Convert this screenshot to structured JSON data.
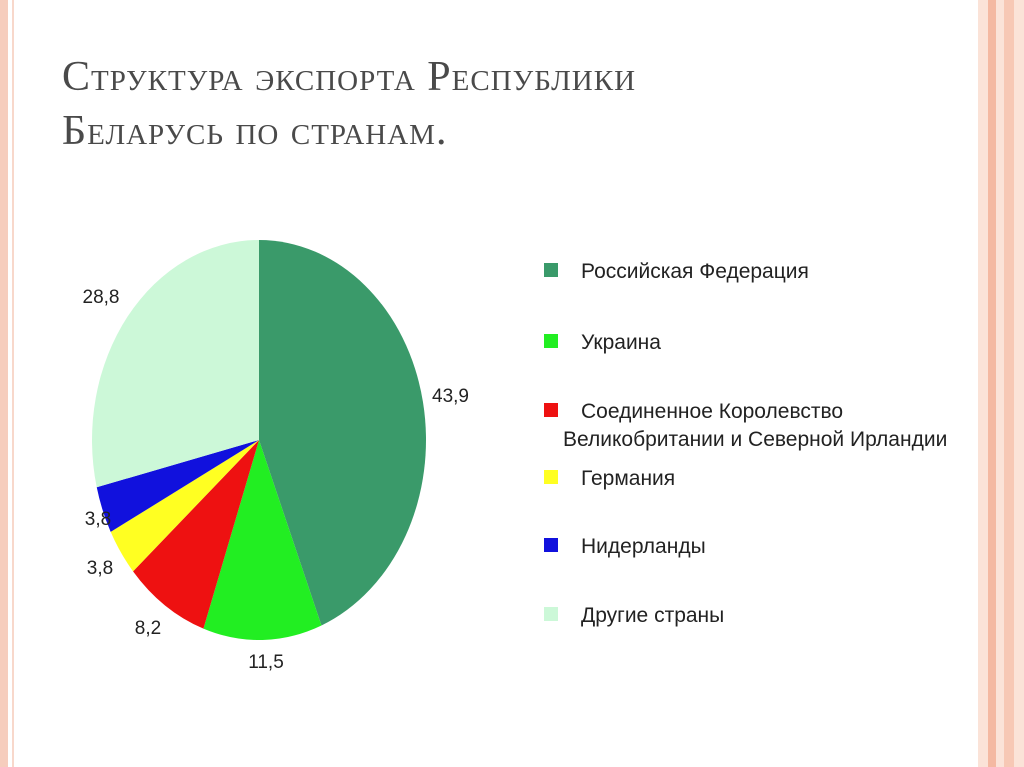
{
  "slide": {
    "title_lines": [
      "Структура экспорта Республики",
      "Беларусь по странам."
    ]
  },
  "chart_data": {
    "type": "pie",
    "title": "Структура экспорта Республики Беларусь по странам.",
    "legend_position": "right",
    "categories": [
      "Российская Федерация",
      "Украина",
      "Соединенное Королевство Великобритании и Северной Ирландии",
      "Германия",
      "Нидерланды",
      "Другие страны"
    ],
    "values": [
      43.9,
      11.5,
      8.2,
      3.8,
      3.8,
      28.8
    ],
    "value_labels": [
      "43,9",
      "11,5",
      "8,2",
      "3,8",
      "3,8",
      "28,8"
    ],
    "colors": [
      "#3a9a6a",
      "#22ee22",
      "#ee1111",
      "#ffff22",
      "#1111dd",
      "#ccf8d8"
    ],
    "legend": [
      {
        "lines": [
          "Российская Федерация"
        ]
      },
      {
        "lines": [
          "Украина"
        ]
      },
      {
        "lines": [
          "Соединенное Королевство",
          "Великобритании и Северной Ирландии"
        ]
      },
      {
        "lines": [
          "Германия"
        ]
      },
      {
        "lines": [
          "Нидерланды"
        ]
      },
      {
        "lines": [
          "Другие страны"
        ]
      }
    ]
  }
}
